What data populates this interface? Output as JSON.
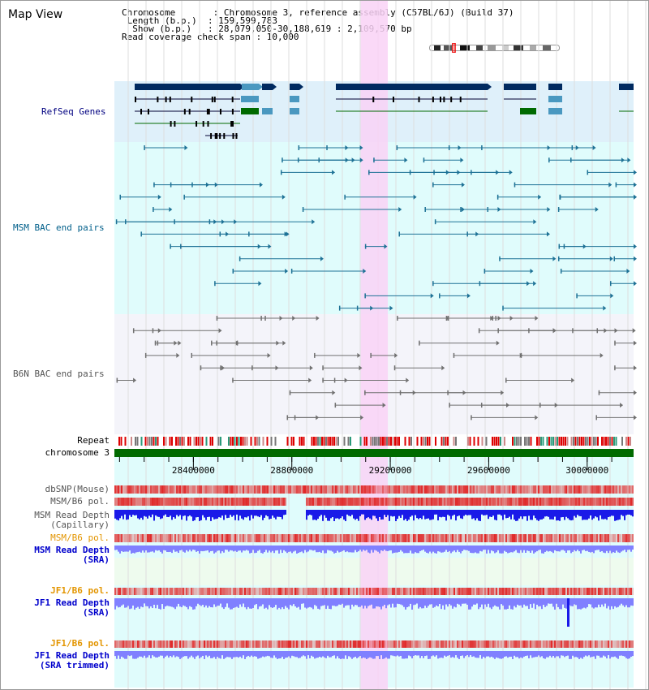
{
  "header": {
    "title": "Map View",
    "info_lines": [
      "Chromosome       : Chromosome 3, reference assembly (C57BL/6J) (Build 37)",
      " Length (b.p.)  : 159,599,783",
      "  Show (b.p.)   : 28,079,050-30,188,619 : 2,109,570 bp",
      "Read coverage check span : 10,000"
    ]
  },
  "view": {
    "start": 28079050,
    "end": 30188619,
    "highlight_start": 29080000,
    "highlight_end": 29190000
  },
  "tracks": {
    "refseq": {
      "label": "RefSeq Genes"
    },
    "msm_bac": {
      "label": "MSM BAC end pairs"
    },
    "b6n_bac": {
      "label": "B6N BAC end pairs"
    },
    "repeat": {
      "label": "Repeat"
    },
    "chromosome": {
      "label": "chromosome 3"
    },
    "dbsnp": {
      "label": "dbSNP(Mouse)"
    },
    "msm_b6_pol": {
      "label": "MSM/B6 pol."
    },
    "msm_depth_cap": {
      "label": "MSM Read Depth",
      "sub": "(Capillary)"
    },
    "msm_b6_pol2": {
      "label": "MSM/B6 pol."
    },
    "msm_depth_sra": {
      "label": "MSM Read Depth",
      "sub": "(SRA)"
    },
    "jf1_b6_pol": {
      "label": "JF1/B6 pol."
    },
    "jf1_depth": {
      "label": "JF1 Read Depth",
      "sub": "(SRA)"
    },
    "jf1_b6_pol2": {
      "label": "JF1/B6 pol."
    },
    "jf1_depth_trim": {
      "label": "JF1 Read Depth",
      "sub": "(SRA trimmed)"
    }
  },
  "axis": {
    "ticks": [
      28400000,
      28800000,
      29200000,
      29600000,
      30000000
    ],
    "tick_labels": [
      "28400000",
      "28800000",
      "29200000",
      "29600000",
      "30000000"
    ]
  },
  "colors": {
    "refseq_bg": "#dff0fa",
    "msm_bg": "#e0fcfc",
    "b6n_bg": "#f4f4fa",
    "highlight": "#f9d2f6",
    "gene_navy": "#002a60",
    "gene_teal": "#4a98c0",
    "gene_green": "#006a00",
    "bac_msm": "#1e7296",
    "bac_b6n": "#707070",
    "chrom_green": "#006a00",
    "depth_blue": "#1a1ae8",
    "depth_light": "#8080ff",
    "pol_red": "#e03030"
  }
}
